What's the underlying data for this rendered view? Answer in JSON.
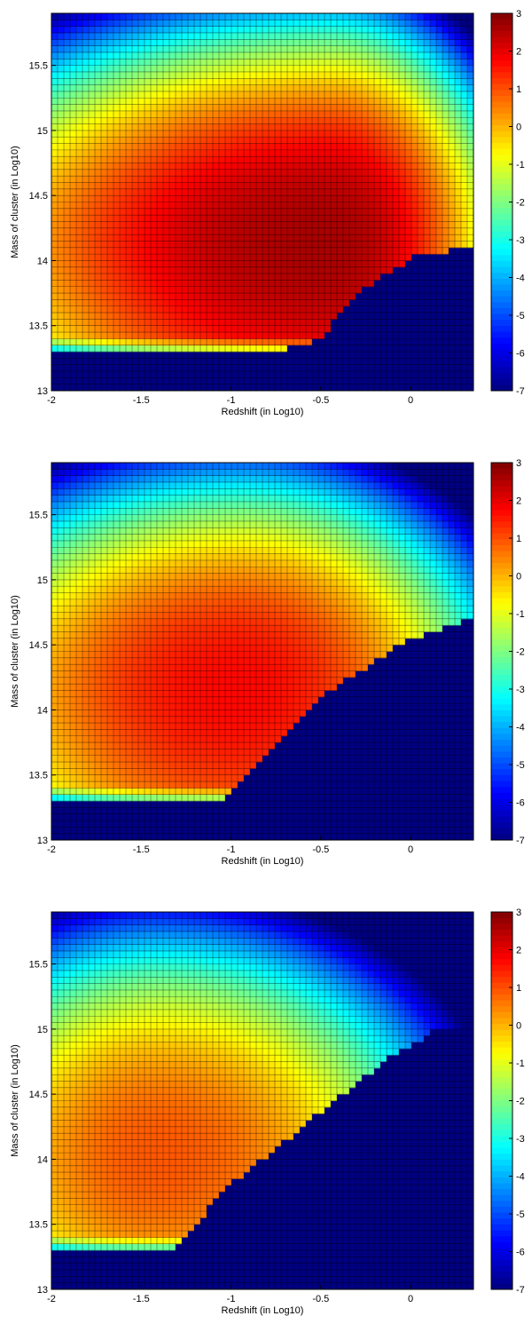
{
  "chart_data": [
    {
      "type": "heatmap",
      "xlabel": "Redshift (in Log10)",
      "ylabel": "Mass of cluster (in Log10)",
      "xlim": [
        -2,
        0.35
      ],
      "ylim": [
        13,
        15.9
      ],
      "xticks": [
        "-2",
        "-1.5",
        "-1",
        "-0.5",
        "0"
      ],
      "xtick_values": [
        -2,
        -1.5,
        -1,
        -0.5,
        0
      ],
      "yticks": [
        "13",
        "13.5",
        "14",
        "14.5",
        "15",
        "15.5"
      ],
      "ytick_values": [
        13,
        13.5,
        14,
        14.5,
        15,
        15.5
      ],
      "colorbar_ticks": [
        "3",
        "2",
        "1",
        "0",
        "-1",
        "-2",
        "-3",
        "-4",
        "-5",
        "-6",
        "-7"
      ],
      "colorbar_tick_values": [
        3,
        2,
        1,
        0,
        -1,
        -2,
        -3,
        -4,
        -5,
        -6,
        -7
      ],
      "clim": [
        -7,
        3
      ],
      "grid": true,
      "peak": {
        "x": -0.45,
        "y": 14.15,
        "value": 2.6
      },
      "lower_mass_limit": 13.32,
      "boundary": [
        [
          -0.7,
          13.32
        ],
        [
          -0.5,
          13.4
        ],
        [
          -0.3,
          13.75
        ],
        [
          0.05,
          14.05
        ],
        [
          0.35,
          14.1
        ]
      ]
    },
    {
      "type": "heatmap",
      "xlabel": "Redshift (in Log10)",
      "ylabel": "Mass of cluster (in Log10)",
      "xlim": [
        -2,
        0.35
      ],
      "ylim": [
        13,
        15.9
      ],
      "xticks": [
        "-2",
        "-1.5",
        "-1",
        "-0.5",
        "0"
      ],
      "xtick_values": [
        -2,
        -1.5,
        -1,
        -0.5,
        0
      ],
      "yticks": [
        "13",
        "13.5",
        "14",
        "14.5",
        "15",
        "15.5"
      ],
      "ytick_values": [
        13,
        13.5,
        14,
        14.5,
        15,
        15.5
      ],
      "colorbar_ticks": [
        "3",
        "2",
        "1",
        "0",
        "-1",
        "-2",
        "-3",
        "-4",
        "-5",
        "-6",
        "-7"
      ],
      "colorbar_tick_values": [
        3,
        2,
        1,
        0,
        -1,
        -2,
        -3,
        -4,
        -5,
        -6,
        -7
      ],
      "clim": [
        -7,
        3
      ],
      "grid": true,
      "peak": {
        "x": -0.95,
        "y": 14.15,
        "value": 1.7
      },
      "lower_mass_limit": 13.32,
      "boundary": [
        [
          -1.05,
          13.32
        ],
        [
          -0.8,
          13.65
        ],
        [
          -0.45,
          14.15
        ],
        [
          0.0,
          14.55
        ],
        [
          0.35,
          14.7
        ]
      ]
    },
    {
      "type": "heatmap",
      "xlabel": "Redshift (in Log10)",
      "ylabel": "Mass of cluster (in Log10)",
      "xlim": [
        -2,
        0.35
      ],
      "ylim": [
        13,
        15.9
      ],
      "xticks": [
        "-2",
        "-1.5",
        "-1",
        "-0.5",
        "0"
      ],
      "xtick_values": [
        -2,
        -1.5,
        -1,
        -0.5,
        0
      ],
      "yticks": [
        "13",
        "13.5",
        "14",
        "14.5",
        "15",
        "15.5"
      ],
      "ytick_values": [
        13,
        13.5,
        14,
        14.5,
        15,
        15.5
      ],
      "colorbar_ticks": [
        "3",
        "2",
        "1",
        "0",
        "-1",
        "-2",
        "-3",
        "-4",
        "-5",
        "-6",
        "-7"
      ],
      "colorbar_tick_values": [
        3,
        2,
        1,
        0,
        -1,
        -2,
        -3,
        -4,
        -5,
        -6,
        -7
      ],
      "clim": [
        -7,
        3
      ],
      "grid": true,
      "peak": {
        "x": -1.4,
        "y": 14.0,
        "value": 0.9
      },
      "lower_mass_limit": 13.32,
      "boundary": [
        [
          -1.3,
          13.32
        ],
        [
          -1.05,
          13.75
        ],
        [
          -0.6,
          14.25
        ],
        [
          -0.1,
          14.8
        ],
        [
          0.15,
          15.0
        ]
      ]
    }
  ]
}
